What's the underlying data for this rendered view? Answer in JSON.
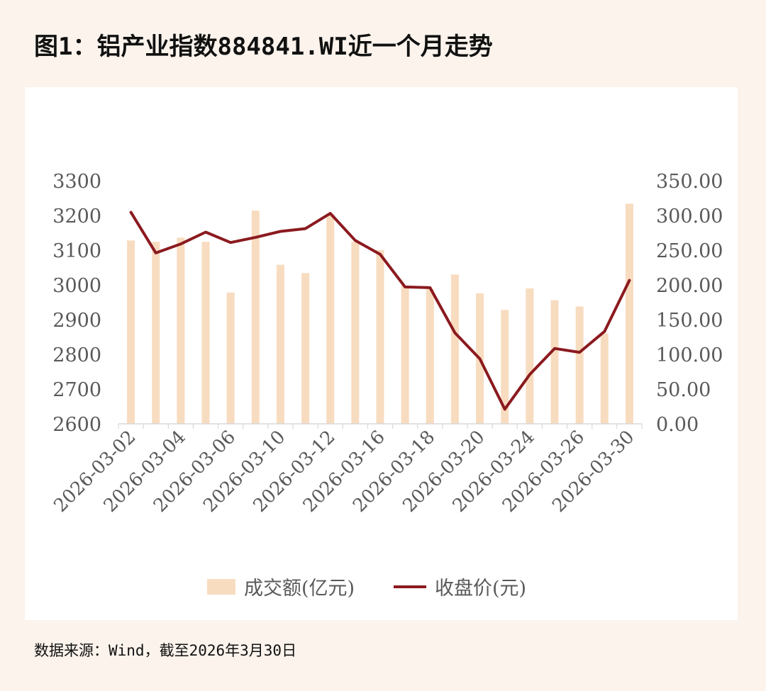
{
  "title": "图1：铝产业指数884841.WI近一个月走势",
  "source": "数据来源：Wind，截至2026年3月30日",
  "colors": {
    "bar": "#f8dcc0",
    "line": "#8b1a1f",
    "axis_text": "#595959",
    "axis_line": "#d9d9d9"
  },
  "chart_data": {
    "type": "bar+line",
    "categories": [
      "2026-03-02",
      "2026-03-03",
      "2026-03-04",
      "2026-03-05",
      "2026-03-06",
      "2026-03-09",
      "2026-03-10",
      "2026-03-11",
      "2026-03-12",
      "2026-03-13",
      "2026-03-16",
      "2026-03-17",
      "2026-03-18",
      "2026-03-19",
      "2026-03-20",
      "2026-03-23",
      "2026-03-24",
      "2026-03-25",
      "2026-03-26",
      "2026-03-27",
      "2026-03-30"
    ],
    "tick_labels": [
      "2026-03-02",
      "2026-03-04",
      "2026-03-06",
      "2026-03-10",
      "2026-03-12",
      "2026-03-16",
      "2026-03-18",
      "2026-03-20",
      "2026-03-24",
      "2026-03-26",
      "2026-03-30"
    ],
    "series": [
      {
        "name": "成交额(亿元)",
        "type": "bar",
        "axis": "right",
        "values": [
          264,
          262,
          268,
          262,
          189,
          307,
          229,
          217,
          302,
          262,
          250,
          199,
          194,
          215,
          188,
          164,
          195,
          178,
          169,
          130,
          317
        ]
      },
      {
        "name": "收盘价(元)",
        "type": "line",
        "axis": "left",
        "values": [
          3209,
          3092,
          3118,
          3152,
          3122,
          3137,
          3154,
          3162,
          3206,
          3128,
          3088,
          2994,
          2992,
          2862,
          2787,
          2642,
          2742,
          2817,
          2806,
          2866,
          3013
        ]
      }
    ],
    "y_left": {
      "min": 2600,
      "max": 3300,
      "ticks": [
        "3300",
        "3200",
        "3100",
        "3000",
        "2900",
        "2800",
        "2700",
        "2600"
      ]
    },
    "y_right": {
      "min": 0,
      "max": 350,
      "ticks": [
        "350.00",
        "300.00",
        "250.00",
        "200.00",
        "150.00",
        "100.00",
        "50.00",
        "0.00"
      ]
    },
    "legend": {
      "position": "bottom",
      "items": [
        "成交额(亿元)",
        "收盘价(元)"
      ]
    },
    "grid": false
  }
}
